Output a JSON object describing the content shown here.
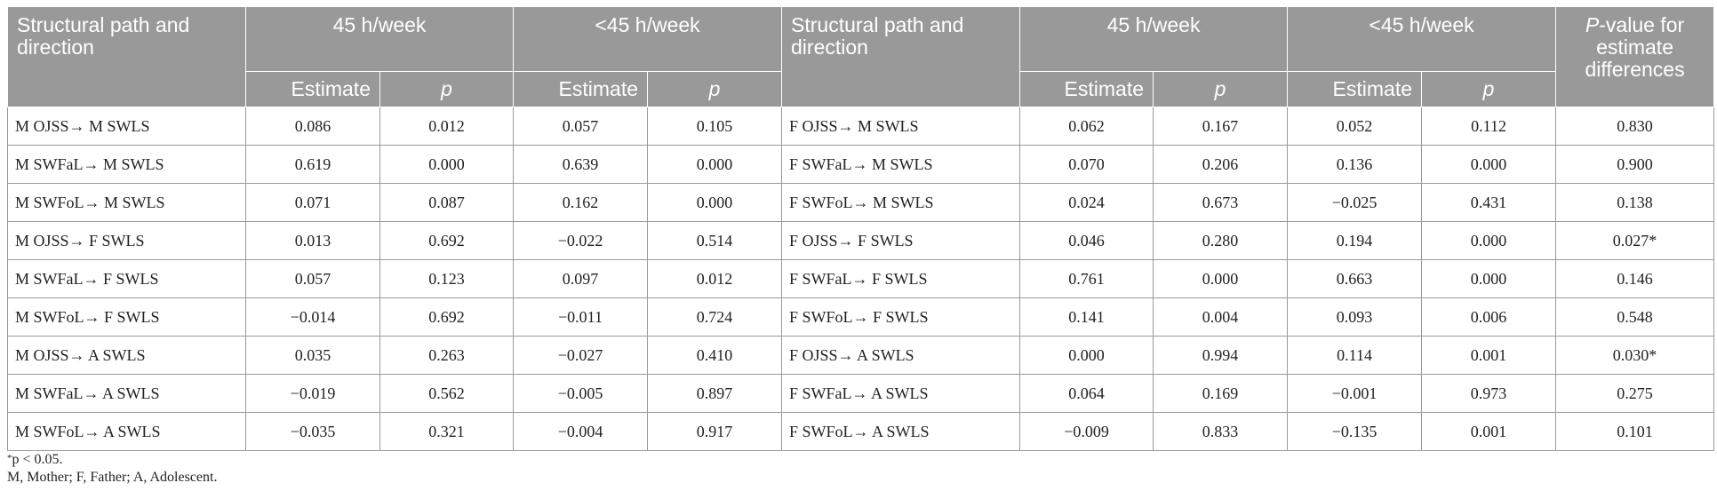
{
  "header": {
    "path_label": "Structural path and direction",
    "group1": "45 h/week",
    "group2": "<45 h/week",
    "estimate": "Estimate",
    "p": "p",
    "pvalue_italic": "P",
    "pvalue_rest": "-value for estimate differences"
  },
  "rows": [
    {
      "m_path": "M OJSS→ M SWLS",
      "m45_est": "0.086",
      "m45_p": "0.012",
      "mlt_est": "0.057",
      "mlt_p": "0.105",
      "f_path": "F OJSS→ M SWLS",
      "f45_est": "0.062",
      "f45_p": "0.167",
      "flt_est": "0.052",
      "flt_p": "0.112",
      "diff": "0.830"
    },
    {
      "m_path": "M SWFaL→ M SWLS",
      "m45_est": "0.619",
      "m45_p": "0.000",
      "mlt_est": "0.639",
      "mlt_p": "0.000",
      "f_path": "F SWFaL→ M SWLS",
      "f45_est": "0.070",
      "f45_p": "0.206",
      "flt_est": "0.136",
      "flt_p": "0.000",
      "diff": "0.900"
    },
    {
      "m_path": "M SWFoL→ M SWLS",
      "m45_est": "0.071",
      "m45_p": "0.087",
      "mlt_est": "0.162",
      "mlt_p": "0.000",
      "f_path": "F SWFoL→ M SWLS",
      "f45_est": "0.024",
      "f45_p": "0.673",
      "flt_est": "−0.025",
      "flt_p": "0.431",
      "diff": "0.138"
    },
    {
      "m_path": "M OJSS→ F SWLS",
      "m45_est": "0.013",
      "m45_p": "0.692",
      "mlt_est": "−0.022",
      "mlt_p": "0.514",
      "f_path": "F OJSS→ F SWLS",
      "f45_est": "0.046",
      "f45_p": "0.280",
      "flt_est": "0.194",
      "flt_p": "0.000",
      "diff": "0.027*"
    },
    {
      "m_path": "M SWFaL→ F SWLS",
      "m45_est": "0.057",
      "m45_p": "0.123",
      "mlt_est": "0.097",
      "mlt_p": "0.012",
      "f_path": "F SWFaL→ F SWLS",
      "f45_est": "0.761",
      "f45_p": "0.000",
      "flt_est": "0.663",
      "flt_p": "0.000",
      "diff": "0.146"
    },
    {
      "m_path": "M SWFoL→ F SWLS",
      "m45_est": "−0.014",
      "m45_p": "0.692",
      "mlt_est": "−0.011",
      "mlt_p": "0.724",
      "f_path": "F SWFoL→ F SWLS",
      "f45_est": "0.141",
      "f45_p": "0.004",
      "flt_est": "0.093",
      "flt_p": "0.006",
      "diff": "0.548"
    },
    {
      "m_path": "M OJSS→ A SWLS",
      "m45_est": "0.035",
      "m45_p": "0.263",
      "mlt_est": "−0.027",
      "mlt_p": "0.410",
      "f_path": "F OJSS→ A SWLS",
      "f45_est": "0.000",
      "f45_p": "0.994",
      "flt_est": "0.114",
      "flt_p": "0.001",
      "diff": "0.030*"
    },
    {
      "m_path": "M SWFaL→ A SWLS",
      "m45_est": "−0.019",
      "m45_p": "0.562",
      "mlt_est": "−0.005",
      "mlt_p": "0.897",
      "f_path": "F SWFaL→ A SWLS",
      "f45_est": "0.064",
      "f45_p": "0.169",
      "flt_est": "−0.001",
      "flt_p": "0.973",
      "diff": "0.275"
    },
    {
      "m_path": "M SWFoL→ A SWLS",
      "m45_est": "−0.035",
      "m45_p": "0.321",
      "mlt_est": "−0.004",
      "mlt_p": "0.917",
      "f_path": "F SWFoL→ A SWLS",
      "f45_est": "−0.009",
      "f45_p": "0.833",
      "flt_est": "−0.135",
      "flt_p": "0.001",
      "diff": "0.101"
    }
  ],
  "notes": {
    "sig_star": "*",
    "sig_text": "p < 0.05.",
    "abbrev": "M, Mother; F, Father; A, Adolescent."
  },
  "colors": {
    "header_bg": "#999999",
    "header_text": "#ffffff",
    "border": "#9a9a9a"
  }
}
